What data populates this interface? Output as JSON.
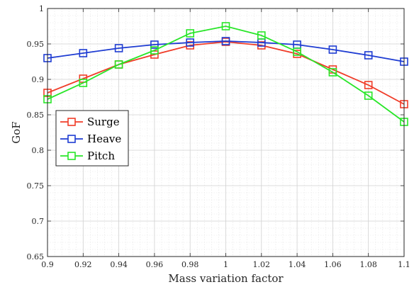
{
  "chart_data": {
    "type": "line",
    "title": "",
    "xlabel": "Mass variation factor",
    "ylabel": "GoF",
    "xlim": [
      0.9,
      1.1
    ],
    "ylim": [
      0.65,
      1.0
    ],
    "xticks": [
      0.9,
      0.92,
      0.94,
      0.96,
      0.98,
      1.0,
      1.02,
      1.04,
      1.06,
      1.08,
      1.1
    ],
    "xtick_labels": [
      "0.9",
      "0.92",
      "0.94",
      "0.96",
      "0.98",
      "1",
      "1.02",
      "1.04",
      "1.06",
      "1.08",
      "1.1"
    ],
    "yticks": [
      0.65,
      0.7,
      0.75,
      0.8,
      0.85,
      0.9,
      0.95,
      1.0
    ],
    "ytick_labels": [
      "0.65",
      "0.7",
      "0.75",
      "0.8",
      "0.85",
      "0.9",
      "0.95",
      "1"
    ],
    "grid": true,
    "minor_grid": true,
    "legend_position": "middle-left",
    "marker": "square",
    "x": [
      0.9,
      0.92,
      0.94,
      0.96,
      0.98,
      1.0,
      1.02,
      1.04,
      1.06,
      1.08,
      1.1
    ],
    "series": [
      {
        "name": "Surge",
        "color": "#f03c28",
        "values": [
          0.881,
          0.901,
          0.921,
          0.935,
          0.948,
          0.953,
          0.948,
          0.936,
          0.914,
          0.892,
          0.865
        ]
      },
      {
        "name": "Heave",
        "color": "#1e3cd2",
        "values": [
          0.93,
          0.937,
          0.944,
          0.949,
          0.952,
          0.954,
          0.952,
          0.949,
          0.942,
          0.934,
          0.925
        ]
      },
      {
        "name": "Pitch",
        "color": "#28e628",
        "values": [
          0.872,
          0.895,
          0.921,
          0.941,
          0.965,
          0.975,
          0.962,
          0.939,
          0.91,
          0.877,
          0.84
        ]
      }
    ]
  }
}
